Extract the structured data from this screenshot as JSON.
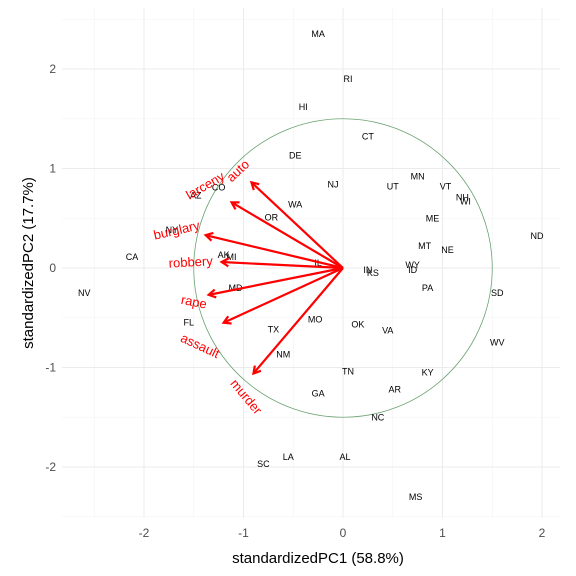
{
  "chart_data": {
    "type": "scatter",
    "xlabel": "standardizedPC1 (58.8%)",
    "ylabel": "standardizedPC2 (17.7%)",
    "xlim": [
      -2.8,
      2.15
    ],
    "ylim": [
      -2.5,
      2.6
    ],
    "x_ticks": [
      -2,
      -1,
      0,
      1,
      2
    ],
    "y_ticks": [
      -2,
      -1,
      0,
      1,
      2
    ],
    "grid": true,
    "circle_radius": 1.5,
    "colors": {
      "arrow": "#ff0000",
      "circle": "#6aa272",
      "grid": "#ebebeb"
    },
    "points": [
      {
        "label": "MA",
        "x": -0.25,
        "y": 2.35
      },
      {
        "label": "RI",
        "x": 0.05,
        "y": 1.9
      },
      {
        "label": "HI",
        "x": -0.4,
        "y": 1.62
      },
      {
        "label": "CT",
        "x": 0.25,
        "y": 1.32
      },
      {
        "label": "DE",
        "x": -0.48,
        "y": 1.13
      },
      {
        "label": "MN",
        "x": 0.75,
        "y": 0.92
      },
      {
        "label": "NJ",
        "x": -0.1,
        "y": 0.84
      },
      {
        "label": "UT",
        "x": 0.5,
        "y": 0.82
      },
      {
        "label": "VT",
        "x": 1.03,
        "y": 0.82
      },
      {
        "label": "NH",
        "x": 1.2,
        "y": 0.71
      },
      {
        "label": "WI",
        "x": 1.23,
        "y": 0.67
      },
      {
        "label": "CO",
        "x": -1.25,
        "y": 0.81
      },
      {
        "label": "AZ",
        "x": -1.48,
        "y": 0.73
      },
      {
        "label": "WA",
        "x": -0.48,
        "y": 0.64
      },
      {
        "label": "OR",
        "x": -0.72,
        "y": 0.51
      },
      {
        "label": "ME",
        "x": 0.9,
        "y": 0.5
      },
      {
        "label": "NY",
        "x": -1.72,
        "y": 0.38
      },
      {
        "label": "ND",
        "x": 1.95,
        "y": 0.32
      },
      {
        "label": "MT",
        "x": 0.82,
        "y": 0.22
      },
      {
        "label": "NE",
        "x": 1.05,
        "y": 0.18
      },
      {
        "label": "CA",
        "x": -2.12,
        "y": 0.11
      },
      {
        "label": "MI",
        "x": -1.12,
        "y": 0.11
      },
      {
        "label": "AK",
        "x": -1.2,
        "y": 0.13
      },
      {
        "label": "IL",
        "x": -0.25,
        "y": 0.05
      },
      {
        "label": "IN",
        "x": 0.25,
        "y": -0.02
      },
      {
        "label": "KS",
        "x": 0.3,
        "y": -0.05
      },
      {
        "label": "WY",
        "x": 0.7,
        "y": 0.03
      },
      {
        "label": "ID",
        "x": 0.7,
        "y": -0.02
      },
      {
        "label": "PA",
        "x": 0.85,
        "y": -0.2
      },
      {
        "label": "MD",
        "x": -1.08,
        "y": -0.2
      },
      {
        "label": "SD",
        "x": 1.55,
        "y": -0.25
      },
      {
        "label": "NV",
        "x": -2.6,
        "y": -0.25
      },
      {
        "label": "FL",
        "x": -1.55,
        "y": -0.55
      },
      {
        "label": "MO",
        "x": -0.28,
        "y": -0.52
      },
      {
        "label": "OK",
        "x": 0.15,
        "y": -0.57
      },
      {
        "label": "TX",
        "x": -0.7,
        "y": -0.62
      },
      {
        "label": "VA",
        "x": 0.45,
        "y": -0.63
      },
      {
        "label": "WV",
        "x": 1.55,
        "y": -0.75
      },
      {
        "label": "NM",
        "x": -0.6,
        "y": -0.87
      },
      {
        "label": "TN",
        "x": 0.05,
        "y": -1.04
      },
      {
        "label": "KY",
        "x": 0.85,
        "y": -1.05
      },
      {
        "label": "AR",
        "x": 0.52,
        "y": -1.22
      },
      {
        "label": "GA",
        "x": -0.25,
        "y": -1.26
      },
      {
        "label": "NC",
        "x": 0.35,
        "y": -1.5
      },
      {
        "label": "AL",
        "x": 0.02,
        "y": -1.9
      },
      {
        "label": "LA",
        "x": -0.55,
        "y": -1.9
      },
      {
        "label": "SC",
        "x": -0.8,
        "y": -1.97
      },
      {
        "label": "MS",
        "x": 0.73,
        "y": -2.3
      }
    ],
    "loadings": [
      {
        "label": "auto",
        "x": -0.92,
        "y": 0.86
      },
      {
        "label": "larceny",
        "x": -1.12,
        "y": 0.66
      },
      {
        "label": "burglary",
        "x": -1.38,
        "y": 0.33
      },
      {
        "label": "robbery",
        "x": -1.22,
        "y": 0.06
      },
      {
        "label": "rape",
        "x": -1.35,
        "y": -0.27
      },
      {
        "label": "assault",
        "x": -1.2,
        "y": -0.55
      },
      {
        "label": "murder",
        "x": -0.9,
        "y": -1.06
      }
    ],
    "loading_label_placement": [
      {
        "label": "auto",
        "x": -1.05,
        "y": 0.97,
        "angle": -43
      },
      {
        "label": "larceny",
        "x": -1.38,
        "y": 0.82,
        "angle": -30
      },
      {
        "label": "burglary",
        "x": -1.67,
        "y": 0.37,
        "angle": -13
      },
      {
        "label": "robbery",
        "x": -1.53,
        "y": 0.05,
        "angle": -3
      },
      {
        "label": "rape",
        "x": -1.5,
        "y": -0.35,
        "angle": 11
      },
      {
        "label": "assault",
        "x": -1.44,
        "y": -0.79,
        "angle": 25
      },
      {
        "label": "murder",
        "x": -0.98,
        "y": -1.3,
        "angle": 50
      }
    ]
  }
}
